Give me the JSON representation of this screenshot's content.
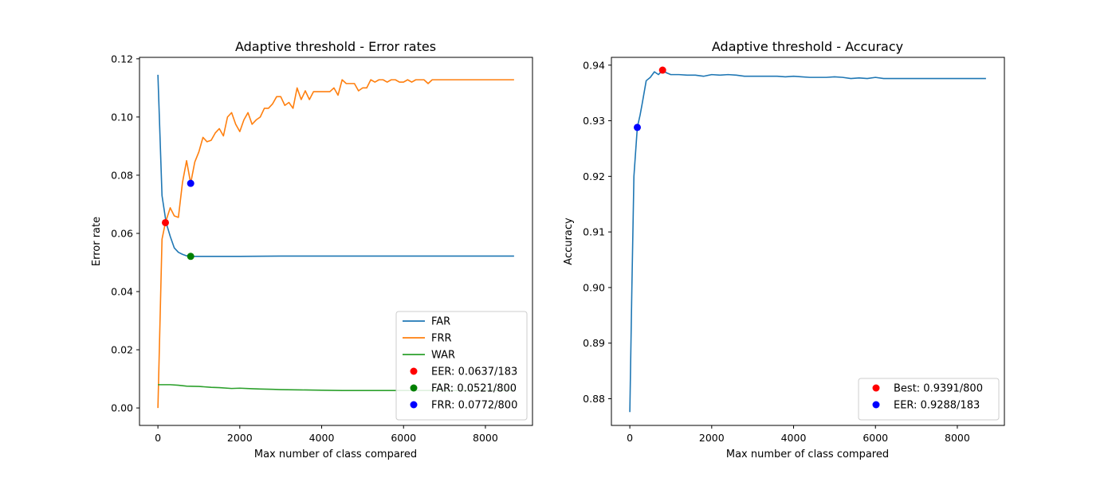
{
  "chart_data": [
    {
      "type": "line",
      "title": "Adaptive threshold - Error rates",
      "xlabel": "Max number of class compared",
      "ylabel": "Error rate",
      "xlim": [
        -450,
        9150
      ],
      "ylim": [
        -0.006,
        0.1205
      ],
      "xticks": [
        0,
        2000,
        4000,
        6000,
        8000
      ],
      "xtick_labels": [
        "0",
        "2000",
        "4000",
        "6000",
        "8000"
      ],
      "yticks": [
        0.0,
        0.02,
        0.04,
        0.06,
        0.08,
        0.1,
        0.12
      ],
      "ytick_labels": [
        "0.00",
        "0.02",
        "0.04",
        "0.06",
        "0.08",
        "0.10",
        "0.12"
      ],
      "grid": false,
      "legend_position": "lower-right",
      "series": [
        {
          "name": "FAR",
          "color": "#1f77b4",
          "x": [
            0,
            100,
            200,
            300,
            400,
            500,
            600,
            700,
            800,
            1000,
            1500,
            2000,
            3000,
            4000,
            5000,
            6000,
            7000,
            8000,
            8700
          ],
          "y": [
            0.1145,
            0.073,
            0.0637,
            0.059,
            0.055,
            0.0535,
            0.0528,
            0.0523,
            0.0521,
            0.0521,
            0.0521,
            0.0521,
            0.0522,
            0.0522,
            0.0522,
            0.0522,
            0.0522,
            0.0522,
            0.0522
          ]
        },
        {
          "name": "FRR",
          "color": "#ff7f0e",
          "x": [
            0,
            100,
            183,
            300,
            400,
            500,
            600,
            700,
            800,
            900,
            1000,
            1100,
            1200,
            1300,
            1400,
            1500,
            1600,
            1700,
            1800,
            1900,
            2000,
            2100,
            2200,
            2300,
            2400,
            2500,
            2600,
            2700,
            2800,
            2900,
            3000,
            3100,
            3200,
            3300,
            3400,
            3500,
            3600,
            3700,
            3800,
            3900,
            4000,
            4100,
            4200,
            4300,
            4400,
            4500,
            4600,
            4800,
            4900,
            5000,
            5100,
            5200,
            5300,
            5400,
            5500,
            5600,
            5700,
            5800,
            5900,
            6000,
            6100,
            6200,
            6300,
            6400,
            6500,
            6600,
            6700,
            6800,
            7000,
            8000,
            8700
          ],
          "y": [
            0.0,
            0.058,
            0.0637,
            0.0688,
            0.066,
            0.0655,
            0.0775,
            0.085,
            0.0772,
            0.0845,
            0.088,
            0.093,
            0.0915,
            0.092,
            0.0945,
            0.096,
            0.0935,
            0.1,
            0.1015,
            0.0975,
            0.095,
            0.099,
            0.1015,
            0.0975,
            0.099,
            0.1,
            0.103,
            0.103,
            0.1045,
            0.107,
            0.107,
            0.104,
            0.105,
            0.103,
            0.11,
            0.106,
            0.109,
            0.106,
            0.1087,
            0.1087,
            0.1087,
            0.1087,
            0.1087,
            0.11,
            0.1075,
            0.1128,
            0.1115,
            0.1115,
            0.109,
            0.11,
            0.11,
            0.1128,
            0.112,
            0.1128,
            0.1128,
            0.112,
            0.1128,
            0.1128,
            0.112,
            0.112,
            0.1128,
            0.112,
            0.1128,
            0.1128,
            0.1128,
            0.1115,
            0.1128,
            0.1128,
            0.1128,
            0.1128,
            0.1128
          ]
        },
        {
          "name": "WAR",
          "color": "#2ca02c",
          "x": [
            0,
            300,
            500,
            700,
            1000,
            1300,
            1500,
            1800,
            2000,
            2300,
            2500,
            2800,
            3000,
            3500,
            4000,
            4500,
            5000,
            6000,
            7000,
            8000,
            8700
          ],
          "y": [
            0.008,
            0.008,
            0.0078,
            0.0075,
            0.0074,
            0.0071,
            0.007,
            0.0067,
            0.0068,
            0.0066,
            0.0065,
            0.0064,
            0.0063,
            0.0062,
            0.0061,
            0.006,
            0.006,
            0.006,
            0.006,
            0.006,
            0.006
          ]
        }
      ],
      "points": [
        {
          "name": "EER: 0.0637/183",
          "x": 183,
          "y": 0.0637,
          "color": "#ff0000"
        },
        {
          "name": "FAR: 0.0521/800",
          "x": 800,
          "y": 0.0521,
          "color": "#008000"
        },
        {
          "name": "FRR: 0.0772/800",
          "x": 800,
          "y": 0.0772,
          "color": "#0000ff"
        }
      ]
    },
    {
      "type": "line",
      "title": "Adaptive threshold - Accuracy",
      "xlabel": "Max number of class compared",
      "ylabel": "Accuracy",
      "xlim": [
        -450,
        9150
      ],
      "ylim": [
        0.8752,
        0.9414
      ],
      "xticks": [
        0,
        2000,
        4000,
        6000,
        8000
      ],
      "xtick_labels": [
        "0",
        "2000",
        "4000",
        "6000",
        "8000"
      ],
      "yticks": [
        0.88,
        0.89,
        0.9,
        0.91,
        0.92,
        0.93,
        0.94
      ],
      "ytick_labels": [
        "0.88",
        "0.89",
        "0.90",
        "0.91",
        "0.92",
        "0.93",
        "0.94"
      ],
      "grid": false,
      "legend_position": "lower-right",
      "series": [
        {
          "color": "#1f77b4",
          "x": [
            0,
            50,
            100,
            183,
            250,
            300,
            400,
            500,
            600,
            700,
            800,
            900,
            1000,
            1200,
            1400,
            1600,
            1800,
            2000,
            2200,
            2400,
            2600,
            2800,
            3000,
            3200,
            3400,
            3600,
            3800,
            4000,
            4200,
            4400,
            4600,
            4800,
            5000,
            5200,
            5400,
            5600,
            5800,
            6000,
            6200,
            6400,
            6600,
            6800,
            7000,
            8000,
            8700
          ],
          "y": [
            0.8776,
            0.9,
            0.92,
            0.9288,
            0.931,
            0.933,
            0.9372,
            0.9378,
            0.9388,
            0.9383,
            0.9391,
            0.9386,
            0.9383,
            0.9383,
            0.9382,
            0.9382,
            0.938,
            0.9383,
            0.9382,
            0.9383,
            0.9382,
            0.938,
            0.938,
            0.938,
            0.938,
            0.938,
            0.9379,
            0.938,
            0.9379,
            0.9378,
            0.9378,
            0.9378,
            0.9379,
            0.9378,
            0.9376,
            0.9377,
            0.9376,
            0.9378,
            0.9376,
            0.9376,
            0.9376,
            0.9376,
            0.9376,
            0.9376,
            0.9376
          ]
        }
      ],
      "points": [
        {
          "name": "Best: 0.9391/800",
          "x": 800,
          "y": 0.9391,
          "color": "#ff0000"
        },
        {
          "name": "EER: 0.9288/183",
          "x": 183,
          "y": 0.9288,
          "color": "#0000ff"
        }
      ]
    }
  ]
}
